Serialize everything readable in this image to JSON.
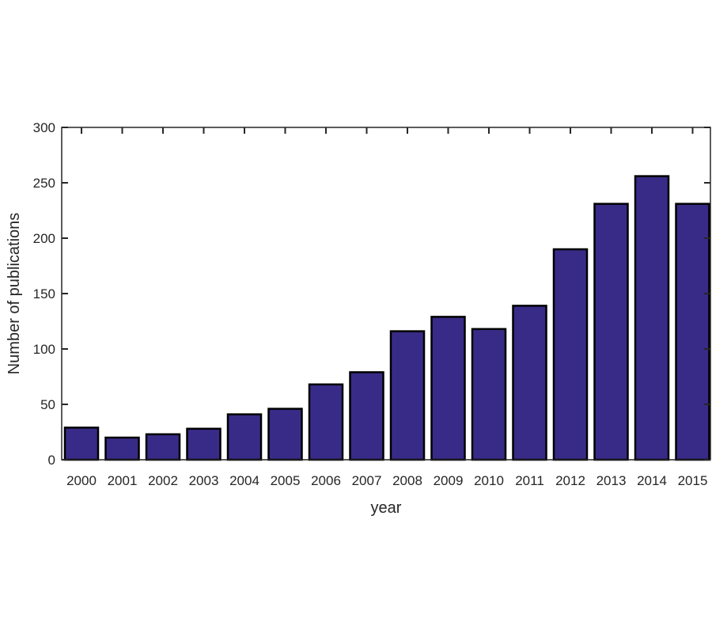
{
  "chart_data": {
    "type": "bar",
    "title": "",
    "xlabel": "year",
    "ylabel": "Number of publications",
    "categories": [
      "2000",
      "2001",
      "2002",
      "2003",
      "2004",
      "2005",
      "2006",
      "2007",
      "2008",
      "2009",
      "2010",
      "2011",
      "2012",
      "2013",
      "2014",
      "2015"
    ],
    "values": [
      29,
      20,
      23,
      28,
      41,
      46,
      68,
      79,
      116,
      129,
      118,
      139,
      190,
      231,
      256,
      231
    ],
    "ylim": [
      0,
      300
    ],
    "yticks": [
      "0",
      "50",
      "100",
      "150",
      "200",
      "250",
      "300"
    ],
    "grid": false,
    "colors": {
      "bar": "#382B87",
      "edge": "#000000",
      "axis": "#262626"
    }
  }
}
